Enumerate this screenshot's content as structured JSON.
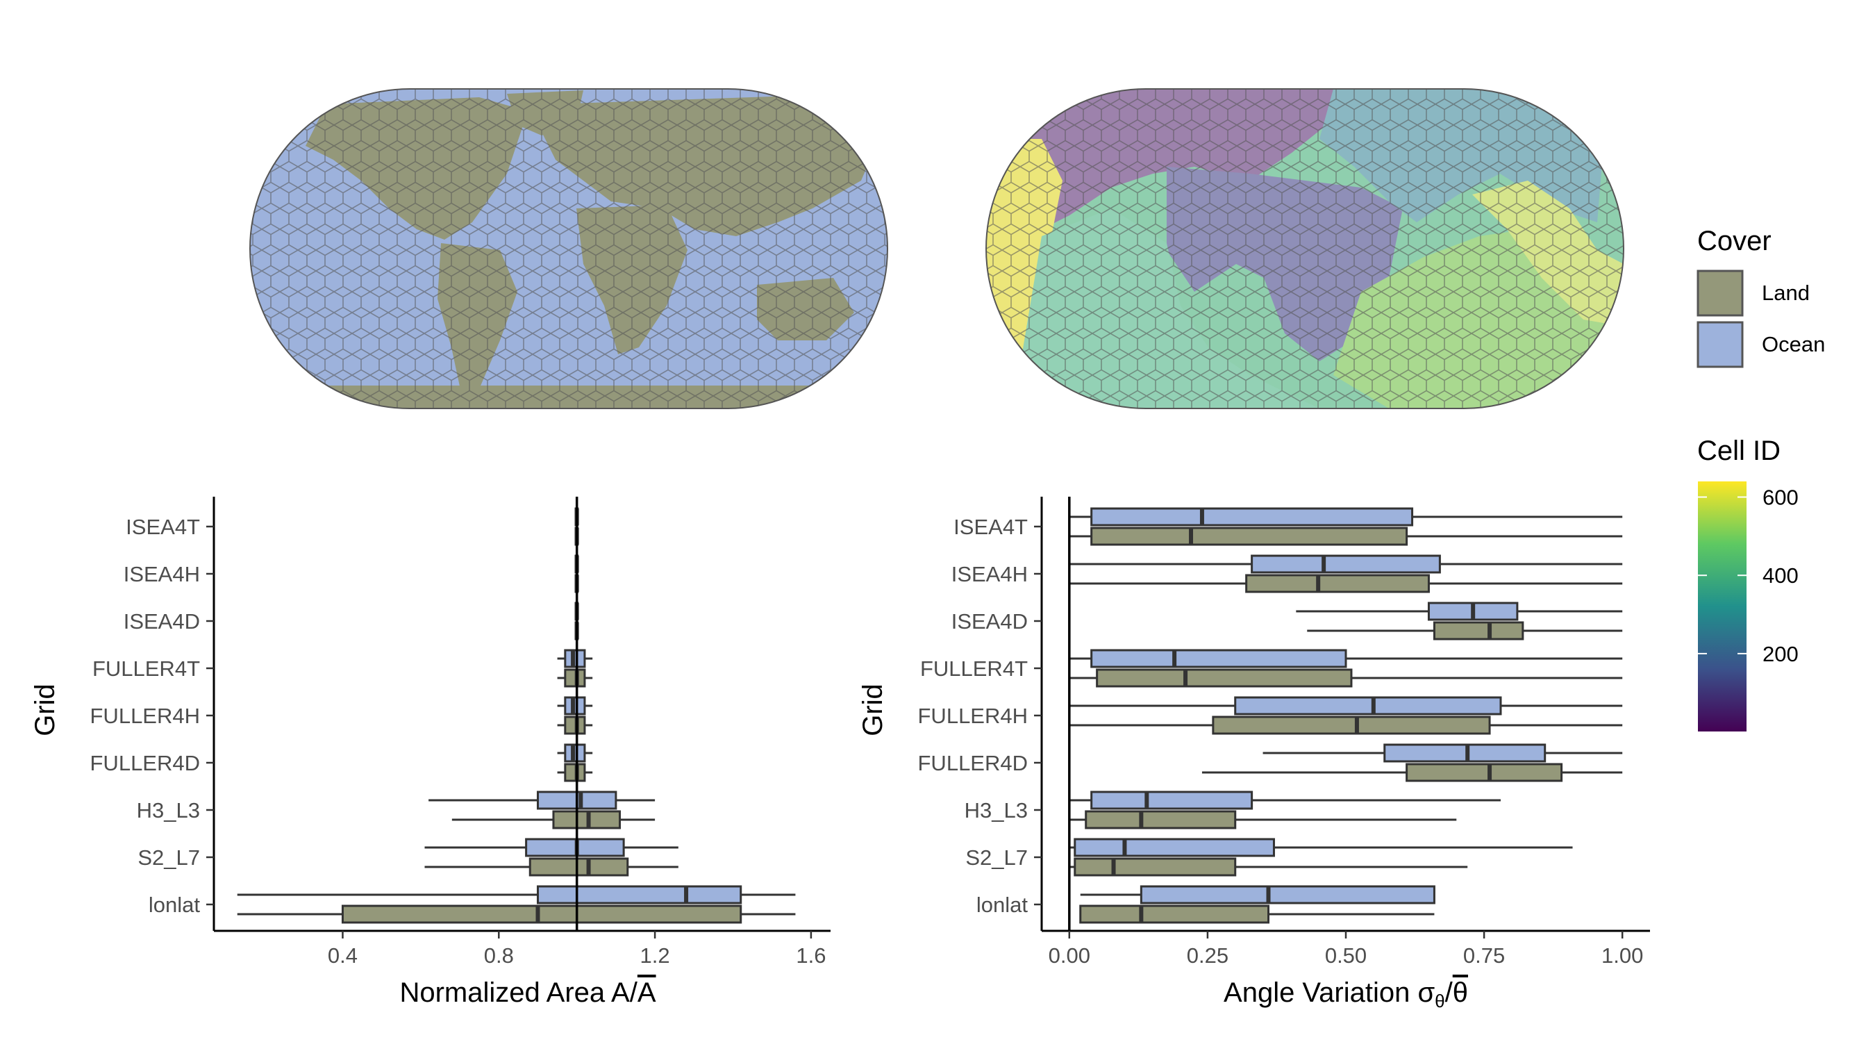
{
  "colors": {
    "land": "#94987a",
    "ocean": "#9db2dc",
    "outline": "#333333",
    "map_edge": "#555555"
  },
  "legend_cover": {
    "title": "Cover",
    "items": [
      {
        "label": "Land",
        "color": "#94987a"
      },
      {
        "label": "Ocean",
        "color": "#9db2dc"
      }
    ]
  },
  "legend_cellid": {
    "title": "Cell ID",
    "ticks": [
      "200",
      "400",
      "600"
    ],
    "tick_values": [
      200,
      400,
      600
    ],
    "range": [
      1,
      640
    ],
    "palette": [
      "#440154",
      "#3b528b",
      "#21918c",
      "#5ec962",
      "#fde725"
    ]
  },
  "chart_data": [
    {
      "type": "boxplot",
      "orientation": "horizontal",
      "ylabel": "Grid",
      "xlabel_main": "Normalized Area A/",
      "xlabel_bar": "A",
      "xlim": [
        0.07,
        1.65
      ],
      "xticks": [
        0.4,
        0.8,
        1.2,
        1.6
      ],
      "xtick_labels": [
        "0.4",
        "0.8",
        "1.2",
        "1.6"
      ],
      "reference_line": 1.0,
      "categories": [
        "ISEA4T",
        "ISEA4H",
        "ISEA4D",
        "FULLER4T",
        "FULLER4H",
        "FULLER4D",
        "H3_L3",
        "S2_L7",
        "lonlat"
      ],
      "series": [
        {
          "name": "Ocean",
          "boxes": [
            {
              "whislo": 0.996,
              "q1": 0.997,
              "med": 1.0,
              "q3": 1.002,
              "whishi": 1.004
            },
            {
              "whislo": 0.996,
              "q1": 0.997,
              "med": 1.0,
              "q3": 1.002,
              "whishi": 1.004
            },
            {
              "whislo": 0.996,
              "q1": 0.997,
              "med": 1.0,
              "q3": 1.002,
              "whishi": 1.004
            },
            {
              "whislo": 0.95,
              "q1": 0.97,
              "med": 0.99,
              "q3": 1.02,
              "whishi": 1.04
            },
            {
              "whislo": 0.95,
              "q1": 0.97,
              "med": 0.99,
              "q3": 1.02,
              "whishi": 1.04
            },
            {
              "whislo": 0.95,
              "q1": 0.97,
              "med": 0.99,
              "q3": 1.02,
              "whishi": 1.04
            },
            {
              "whislo": 0.62,
              "q1": 0.9,
              "med": 1.01,
              "q3": 1.1,
              "whishi": 1.2
            },
            {
              "whislo": 0.61,
              "q1": 0.87,
              "med": 1.0,
              "q3": 1.12,
              "whishi": 1.26
            },
            {
              "whislo": 0.13,
              "q1": 0.9,
              "med": 1.28,
              "q3": 1.42,
              "whishi": 1.56
            }
          ]
        },
        {
          "name": "Land",
          "boxes": [
            {
              "whislo": 0.996,
              "q1": 0.997,
              "med": 1.0,
              "q3": 1.002,
              "whishi": 1.004
            },
            {
              "whislo": 0.996,
              "q1": 0.997,
              "med": 1.0,
              "q3": 1.002,
              "whishi": 1.004
            },
            {
              "whislo": 0.996,
              "q1": 0.997,
              "med": 1.0,
              "q3": 1.002,
              "whishi": 1.004
            },
            {
              "whislo": 0.95,
              "q1": 0.97,
              "med": 1.0,
              "q3": 1.02,
              "whishi": 1.04
            },
            {
              "whislo": 0.95,
              "q1": 0.97,
              "med": 1.0,
              "q3": 1.02,
              "whishi": 1.04
            },
            {
              "whislo": 0.95,
              "q1": 0.97,
              "med": 1.0,
              "q3": 1.02,
              "whishi": 1.04
            },
            {
              "whislo": 0.68,
              "q1": 0.94,
              "med": 1.03,
              "q3": 1.11,
              "whishi": 1.2
            },
            {
              "whislo": 0.61,
              "q1": 0.88,
              "med": 1.03,
              "q3": 1.13,
              "whishi": 1.26
            },
            {
              "whislo": 0.13,
              "q1": 0.4,
              "med": 0.9,
              "q3": 1.42,
              "whishi": 1.56
            }
          ]
        }
      ]
    },
    {
      "type": "boxplot",
      "orientation": "horizontal",
      "ylabel": "Grid",
      "xlabel_main": "Angle Variation σ",
      "xlabel_sub": "θ",
      "xlabel_mid": "/",
      "xlabel_bar": "θ",
      "xlim": [
        -0.05,
        1.05
      ],
      "xticks": [
        0.0,
        0.25,
        0.5,
        0.75,
        1.0
      ],
      "xtick_labels": [
        "0.00",
        "0.25",
        "0.50",
        "0.75",
        "1.00"
      ],
      "reference_line": 0.0,
      "categories": [
        "ISEA4T",
        "ISEA4H",
        "ISEA4D",
        "FULLER4T",
        "FULLER4H",
        "FULLER4D",
        "H3_L3",
        "S2_L7",
        "lonlat"
      ],
      "series": [
        {
          "name": "Ocean",
          "boxes": [
            {
              "whislo": 0.0,
              "q1": 0.04,
              "med": 0.24,
              "q3": 0.62,
              "whishi": 1.0
            },
            {
              "whislo": 0.0,
              "q1": 0.33,
              "med": 0.46,
              "q3": 0.67,
              "whishi": 1.0
            },
            {
              "whislo": 0.41,
              "q1": 0.65,
              "med": 0.73,
              "q3": 0.81,
              "whishi": 1.0
            },
            {
              "whislo": 0.0,
              "q1": 0.04,
              "med": 0.19,
              "q3": 0.5,
              "whishi": 1.0
            },
            {
              "whislo": 0.0,
              "q1": 0.3,
              "med": 0.55,
              "q3": 0.78,
              "whishi": 1.0
            },
            {
              "whislo": 0.35,
              "q1": 0.57,
              "med": 0.72,
              "q3": 0.86,
              "whishi": 1.0
            },
            {
              "whislo": 0.0,
              "q1": 0.04,
              "med": 0.14,
              "q3": 0.33,
              "whishi": 0.78
            },
            {
              "whislo": 0.0,
              "q1": 0.01,
              "med": 0.1,
              "q3": 0.37,
              "whishi": 0.91
            },
            {
              "whislo": 0.02,
              "q1": 0.13,
              "med": 0.36,
              "q3": 0.66,
              "whishi": 0.66
            }
          ]
        },
        {
          "name": "Land",
          "boxes": [
            {
              "whislo": 0.0,
              "q1": 0.04,
              "med": 0.22,
              "q3": 0.61,
              "whishi": 1.0
            },
            {
              "whislo": 0.0,
              "q1": 0.32,
              "med": 0.45,
              "q3": 0.65,
              "whishi": 1.0
            },
            {
              "whislo": 0.43,
              "q1": 0.66,
              "med": 0.76,
              "q3": 0.82,
              "whishi": 1.0
            },
            {
              "whislo": 0.0,
              "q1": 0.05,
              "med": 0.21,
              "q3": 0.51,
              "whishi": 1.0
            },
            {
              "whislo": 0.0,
              "q1": 0.26,
              "med": 0.52,
              "q3": 0.76,
              "whishi": 1.0
            },
            {
              "whislo": 0.24,
              "q1": 0.61,
              "med": 0.76,
              "q3": 0.89,
              "whishi": 1.0
            },
            {
              "whislo": 0.0,
              "q1": 0.03,
              "med": 0.13,
              "q3": 0.3,
              "whishi": 0.7
            },
            {
              "whislo": 0.0,
              "q1": 0.01,
              "med": 0.08,
              "q3": 0.3,
              "whishi": 0.72
            },
            {
              "whislo": 0.02,
              "q1": 0.02,
              "med": 0.13,
              "q3": 0.36,
              "whishi": 0.66
            }
          ]
        }
      ]
    }
  ]
}
